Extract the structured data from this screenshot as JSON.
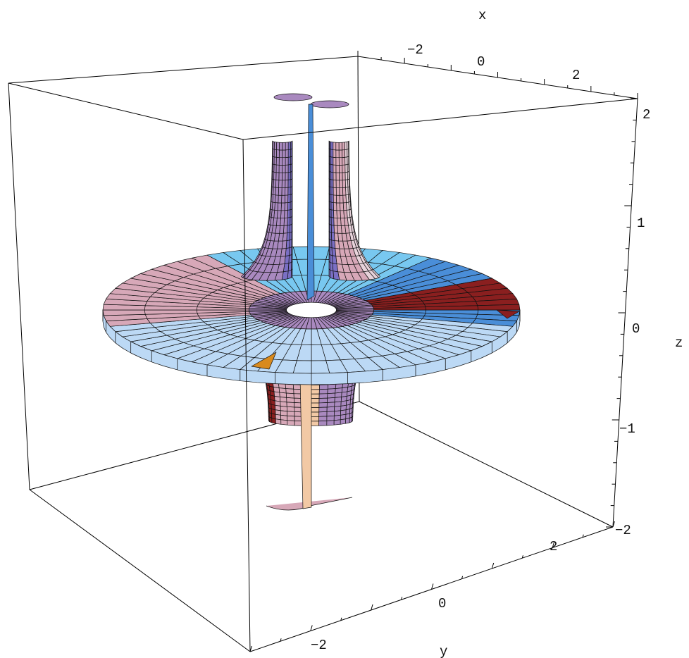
{
  "chart_data": {
    "type": "surface3d",
    "title": "",
    "axes": {
      "x": {
        "label": "x",
        "ticks": [
          {
            "value": -2,
            "label": "-2"
          },
          {
            "value": 0,
            "label": "0"
          },
          {
            "value": 2,
            "label": "2"
          }
        ],
        "range": [
          -3,
          3
        ]
      },
      "y": {
        "label": "y",
        "ticks": [
          {
            "value": -2,
            "label": "-2"
          },
          {
            "value": 0,
            "label": "0"
          },
          {
            "value": 2,
            "label": "2"
          }
        ],
        "range": [
          -3,
          3
        ]
      },
      "z": {
        "label": "z",
        "ticks": [
          {
            "value": -2,
            "label": "-2"
          },
          {
            "value": -1,
            "label": "-1"
          },
          {
            "value": 0,
            "label": "0"
          },
          {
            "value": 1,
            "label": "1"
          },
          {
            "value": 2,
            "label": "2"
          }
        ],
        "range": [
          -2,
          2
        ]
      }
    },
    "surface": {
      "description": "sheet surface: flat disk at z = 0 with radius 3 and a funnel tube of radius about 0.6 rising to z = 2 and falling to z = -2",
      "disk_radius": 3,
      "tube_radius": 0.6,
      "z_range": [
        -2,
        2
      ]
    },
    "box": true,
    "colors": {
      "disk_light": "#bcd9f5",
      "disk_blue": "#78c8f0",
      "disk_dark": "#4a8ed8",
      "tube_purple": "#a989bf",
      "tube_violet": "#7a6fc4",
      "tube_pink": "#d7a8b8",
      "tube_peach": "#f2c9a5",
      "accent_red": "#8a1f1f",
      "accent_orange": "#d88a1e"
    }
  },
  "labels": {
    "x_axis": "x",
    "y_axis": "y",
    "z_axis": "z",
    "x_ticks": [
      "-2",
      "0",
      "2"
    ],
    "y_ticks": [
      "-2",
      "0",
      "2"
    ],
    "z_ticks": [
      "2",
      "1",
      "0",
      "-1",
      "-2"
    ]
  }
}
